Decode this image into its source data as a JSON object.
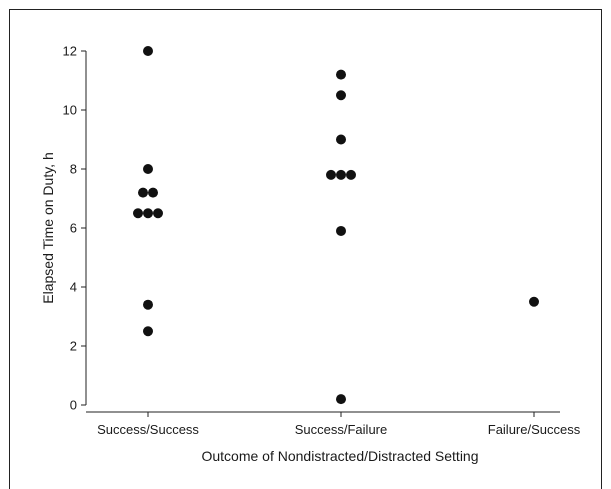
{
  "chart_data": {
    "type": "scatter",
    "title": "",
    "xlabel": "Outcome of Nondistracted/Distracted Setting",
    "ylabel": "Elapsed Time on Duty, h",
    "categories": [
      "Success/Success",
      "Success/Failure",
      "Failure/Success"
    ],
    "ylim": [
      0,
      12
    ],
    "yticks": [
      0,
      2,
      4,
      6,
      8,
      10,
      12
    ],
    "grid": false,
    "legend": "none",
    "marker_color": "#111111",
    "points": [
      {
        "category": "Success/Success",
        "y": 12.0
      },
      {
        "category": "Success/Success",
        "y": 8.0
      },
      {
        "category": "Success/Success",
        "y": 7.2
      },
      {
        "category": "Success/Success",
        "y": 7.2
      },
      {
        "category": "Success/Success",
        "y": 6.5
      },
      {
        "category": "Success/Success",
        "y": 6.5
      },
      {
        "category": "Success/Success",
        "y": 6.5
      },
      {
        "category": "Success/Success",
        "y": 3.4
      },
      {
        "category": "Success/Success",
        "y": 2.5
      },
      {
        "category": "Success/Failure",
        "y": 11.2
      },
      {
        "category": "Success/Failure",
        "y": 10.5
      },
      {
        "category": "Success/Failure",
        "y": 9.0
      },
      {
        "category": "Success/Failure",
        "y": 7.8
      },
      {
        "category": "Success/Failure",
        "y": 7.8
      },
      {
        "category": "Success/Failure",
        "y": 7.8
      },
      {
        "category": "Success/Failure",
        "y": 5.9
      },
      {
        "category": "Success/Failure",
        "y": 0.2
      },
      {
        "category": "Failure/Success",
        "y": 3.5
      }
    ]
  }
}
